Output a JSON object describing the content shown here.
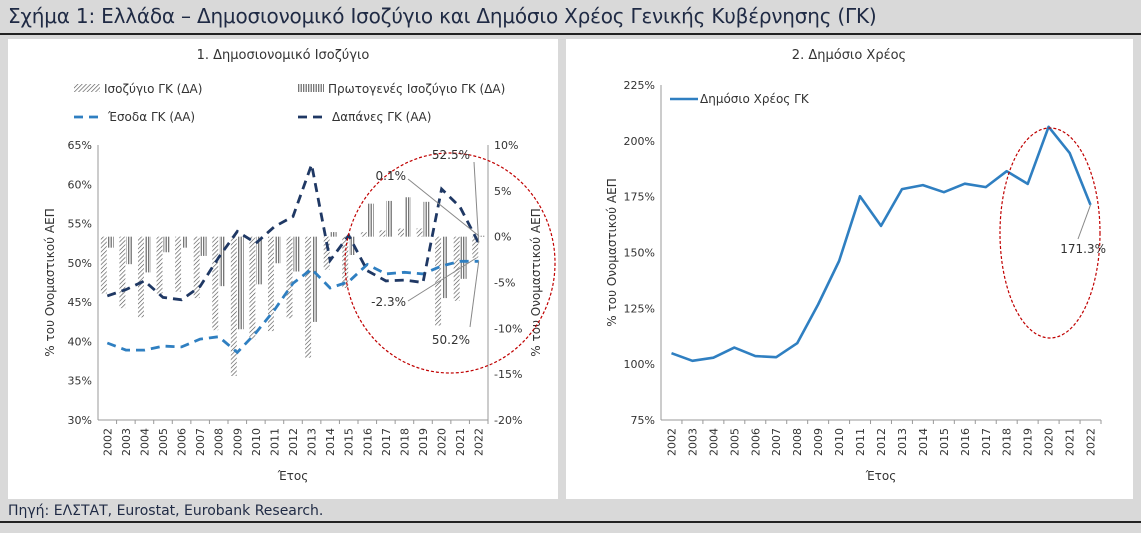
{
  "title": "Σχήμα 1: Ελλάδα – Δημοσιονομικό Ισοζύγιο και Δημόσιο Χρέος Γενικής Κυβέρνησης (ΓΚ)",
  "source": "Πηγή: ΕΛΣΤΑΤ, Eurostat, Eurobank Research.",
  "colors": {
    "accent_dark": "#1f3864",
    "accent_light": "#2f7fc1",
    "circle": "#c00000"
  },
  "chart_data": [
    {
      "type": "bar",
      "title": "1. Δημοσιονομικό Ισοζύγιο",
      "xlabel": "Έτος",
      "ylabel_left": "% του Ονομαστικού ΑΕΠ",
      "ylabel_right": "% του Ονομαστικού ΑΕΠ",
      "categories": [
        "2002",
        "2003",
        "2004",
        "2005",
        "2006",
        "2007",
        "2008",
        "2009",
        "2010",
        "2011",
        "2012",
        "2013",
        "2014",
        "2015",
        "2016",
        "2017",
        "2018",
        "2019",
        "2020",
        "2021",
        "2022"
      ],
      "ylim_left": [
        30,
        65
      ],
      "ylim_right": [
        -20,
        10
      ],
      "yticks_left": [
        "30%",
        "35%",
        "40%",
        "45%",
        "50%",
        "55%",
        "60%",
        "65%"
      ],
      "yticks_right": [
        "-20%",
        "-15%",
        "-10%",
        "-5%",
        "0%",
        "5%",
        "10%"
      ],
      "legend": {
        "placement": "top",
        "entries": [
          "Ισοζύγιο ΓΚ (ΔΑ)",
          "Πρωτογενές Ισοζύγιο ΓΚ (ΔΑ)",
          "Έσοδα ΓΚ (ΑΑ)",
          "Δαπάνες ΓΚ (ΑΑ)"
        ]
      },
      "series": [
        {
          "name": "Ισοζύγιο ΓΚ (ΔΑ)",
          "type": "bar",
          "axis": "right",
          "values": [
            -6.2,
            -7.8,
            -8.8,
            -6.2,
            -6.0,
            -6.7,
            -10.2,
            -15.2,
            -11.2,
            -10.3,
            -8.9,
            -13.2,
            -3.6,
            -5.6,
            0.5,
            0.7,
            0.9,
            0.9,
            -9.7,
            -7.0,
            -2.3
          ]
        },
        {
          "name": "Πρωτογενές Ισοζύγιο ΓΚ (ΔΑ)",
          "type": "bar",
          "axis": "right",
          "values": [
            -1.2,
            -3.0,
            -3.9,
            -1.7,
            -1.2,
            -2.1,
            -5.4,
            -10.1,
            -5.2,
            -2.9,
            -3.8,
            -9.3,
            0.5,
            -2.0,
            3.6,
            3.9,
            4.3,
            3.8,
            -6.7,
            -4.6,
            0.1
          ]
        },
        {
          "name": "Έσοδα ΓΚ (ΑΑ)",
          "type": "line",
          "axis": "left",
          "values": [
            39.8,
            38.9,
            38.9,
            39.4,
            39.3,
            40.3,
            40.6,
            38.6,
            41.1,
            44.0,
            47.4,
            49.2,
            46.8,
            47.6,
            49.8,
            48.6,
            48.8,
            48.6,
            49.6,
            50.2,
            50.2
          ]
        },
        {
          "name": "Δαπάνες ΓΚ (ΑΑ)",
          "type": "line",
          "axis": "left",
          "values": [
            45.8,
            46.6,
            47.7,
            45.6,
            45.3,
            47.0,
            50.7,
            54.0,
            52.5,
            54.6,
            55.9,
            62.5,
            50.3,
            53.5,
            49.0,
            47.7,
            47.8,
            47.5,
            59.4,
            57.1,
            52.5
          ]
        }
      ],
      "annotations": [
        "52.5%",
        "0.1%",
        "-2.3%",
        "50.2%"
      ]
    },
    {
      "type": "line",
      "title": "2. Δημόσιο Χρέος",
      "xlabel": "Έτος",
      "ylabel": "% του Ονομαστικού ΑΕΠ",
      "categories": [
        "2002",
        "2003",
        "2004",
        "2005",
        "2006",
        "2007",
        "2008",
        "2009",
        "2010",
        "2011",
        "2012",
        "2013",
        "2014",
        "2015",
        "2016",
        "2017",
        "2018",
        "2019",
        "2020",
        "2021",
        "2022"
      ],
      "ylim": [
        75,
        225
      ],
      "yticks": [
        "75%",
        "100%",
        "125%",
        "150%",
        "175%",
        "200%",
        "225%"
      ],
      "legend": {
        "placement": "top-left",
        "entries": [
          "Δημόσιο Χρέος ΓΚ"
        ]
      },
      "series": [
        {
          "name": "Δημόσιο Χρέος ΓΚ",
          "values": [
            104.9,
            101.5,
            102.9,
            107.4,
            103.6,
            103.1,
            109.4,
            126.7,
            146.2,
            175.2,
            161.9,
            178.4,
            180.2,
            177.0,
            180.8,
            179.3,
            186.4,
            180.7,
            206.3,
            194.6,
            171.3
          ]
        }
      ],
      "annotations": [
        "171.3%"
      ]
    }
  ]
}
